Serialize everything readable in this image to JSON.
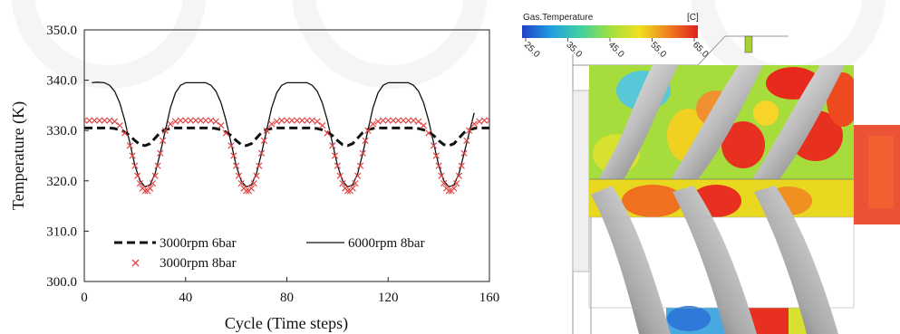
{
  "chart_data": {
    "type": "line",
    "xlabel": "Cycle (Time steps)",
    "ylabel": "Temperature (K)",
    "xlim": [
      0,
      160
    ],
    "ylim": [
      300,
      350
    ],
    "xticks": [
      "0",
      "40",
      "80",
      "120",
      "160"
    ],
    "yticks": [
      "300.0",
      "310.0",
      "320.0",
      "330.0",
      "340.0",
      "350.0"
    ],
    "grid": false,
    "legend_position": "bottom-center",
    "period": 40,
    "series": [
      {
        "name": "3000rpm 6bar",
        "style": "dashed",
        "color": "#111111",
        "x": [
          0,
          5,
          10,
          12,
          15,
          18,
          20,
          22,
          24,
          26,
          28,
          30,
          32,
          35,
          40,
          45,
          50,
          52,
          55,
          58,
          60,
          62,
          64,
          66,
          68,
          70,
          72,
          75,
          80,
          85,
          90,
          92,
          95,
          98,
          100,
          102,
          104,
          106,
          108,
          110,
          112,
          115,
          120,
          125,
          130,
          132,
          135,
          138,
          140,
          142,
          144,
          146,
          148,
          150,
          152,
          155,
          160
        ],
        "y": [
          330.5,
          330.5,
          330.5,
          330.4,
          330.0,
          329.0,
          328.0,
          327.2,
          327.0,
          327.4,
          328.5,
          329.6,
          330.2,
          330.5,
          330.5,
          330.5,
          330.5,
          330.4,
          330.0,
          329.0,
          328.0,
          327.2,
          327.0,
          327.4,
          328.5,
          329.6,
          330.2,
          330.5,
          330.5,
          330.5,
          330.5,
          330.4,
          330.0,
          329.0,
          328.0,
          327.2,
          327.0,
          327.4,
          328.5,
          329.6,
          330.2,
          330.5,
          330.5,
          330.5,
          330.5,
          330.4,
          330.0,
          329.0,
          328.0,
          327.2,
          327.0,
          327.4,
          328.5,
          329.6,
          330.2,
          330.5,
          330.5
        ]
      },
      {
        "name": "6000rpm 8bar",
        "style": "solid",
        "color": "#111111",
        "x": [
          3,
          5,
          8,
          10,
          12,
          14,
          16,
          18,
          20,
          22,
          24,
          26,
          28,
          30,
          32,
          34,
          36,
          38,
          40,
          45,
          48,
          50,
          52,
          54,
          56,
          58,
          60,
          62,
          64,
          66,
          68,
          70,
          72,
          74,
          76,
          78,
          80,
          85,
          88,
          90,
          92,
          94,
          96,
          98,
          100,
          102,
          104,
          106,
          108,
          110,
          112,
          114,
          116,
          118,
          120,
          125,
          128,
          130,
          132,
          134,
          136,
          138,
          140,
          142,
          144,
          146,
          148,
          150,
          152,
          154
        ],
        "y": [
          339.5,
          339.6,
          339.5,
          339.0,
          337.8,
          335.5,
          332.0,
          327.5,
          323.0,
          320.0,
          318.8,
          319.2,
          321.5,
          325.5,
          330.0,
          334.5,
          337.5,
          339.0,
          339.5,
          339.5,
          339.5,
          339.0,
          337.8,
          335.5,
          332.0,
          327.5,
          323.0,
          320.0,
          318.8,
          319.2,
          321.5,
          325.5,
          330.0,
          334.5,
          337.5,
          339.0,
          339.5,
          339.5,
          339.5,
          339.0,
          337.8,
          335.5,
          332.0,
          327.5,
          323.0,
          320.0,
          318.8,
          319.2,
          321.5,
          325.5,
          330.0,
          334.5,
          337.5,
          339.0,
          339.5,
          339.5,
          339.5,
          339.0,
          337.8,
          335.5,
          332.0,
          327.5,
          323.0,
          320.0,
          318.8,
          319.2,
          321.5,
          325.5,
          329.5,
          333.5
        ]
      },
      {
        "name": "3000rpm 8bar",
        "style": "markers-x",
        "color": "#e04646",
        "x": [
          0,
          2,
          4,
          6,
          8,
          10,
          12,
          14,
          16,
          18,
          19,
          20,
          21,
          22,
          23,
          24,
          25,
          26,
          27,
          28,
          29,
          30,
          31,
          32,
          34,
          36,
          38,
          40,
          42,
          44,
          46,
          48,
          50,
          52,
          54,
          56,
          58,
          59,
          60,
          61,
          62,
          63,
          64,
          65,
          66,
          67,
          68,
          69,
          70,
          71,
          72,
          74,
          76,
          78,
          80,
          82,
          84,
          86,
          88,
          90,
          92,
          94,
          96,
          98,
          99,
          100,
          101,
          102,
          103,
          104,
          105,
          106,
          107,
          108,
          109,
          110,
          111,
          112,
          114,
          116,
          118,
          120,
          122,
          124,
          126,
          128,
          130,
          132,
          134,
          136,
          138,
          139,
          140,
          141,
          142,
          143,
          144,
          145,
          146,
          147,
          148,
          149,
          150,
          151,
          152,
          154,
          156,
          158,
          160
        ],
        "y": [
          332.0,
          332.0,
          332.0,
          332.0,
          332.0,
          332.0,
          331.8,
          331.0,
          329.5,
          327.0,
          325.0,
          323.0,
          321.0,
          319.5,
          318.5,
          318.0,
          318.0,
          318.5,
          319.5,
          321.0,
          323.0,
          325.5,
          328.0,
          330.0,
          331.3,
          331.8,
          332.0,
          332.0,
          332.0,
          332.0,
          332.0,
          332.0,
          332.0,
          331.8,
          331.0,
          329.5,
          327.0,
          325.0,
          323.0,
          321.0,
          319.5,
          318.5,
          318.0,
          318.0,
          318.5,
          319.5,
          321.0,
          323.0,
          325.5,
          328.0,
          330.0,
          331.3,
          331.8,
          332.0,
          332.0,
          332.0,
          332.0,
          332.0,
          332.0,
          332.0,
          331.8,
          331.0,
          329.5,
          327.0,
          325.0,
          323.0,
          321.0,
          319.5,
          318.5,
          318.0,
          318.0,
          318.5,
          319.5,
          321.0,
          323.0,
          325.5,
          328.0,
          330.0,
          331.3,
          331.8,
          332.0,
          332.0,
          332.0,
          332.0,
          332.0,
          332.0,
          332.0,
          331.8,
          331.0,
          329.5,
          327.0,
          325.0,
          323.0,
          321.0,
          319.5,
          318.5,
          318.0,
          318.0,
          318.5,
          319.5,
          321.0,
          323.0,
          325.5,
          328.0,
          330.0,
          331.3,
          331.8,
          332.0,
          332.0
        ]
      }
    ]
  },
  "contour": {
    "variable_label": "Gas.Temperature",
    "unit_label": "[C]",
    "colorbar_ticks": [
      "25.0",
      "35.0",
      "45.0",
      "55.0",
      "65.0"
    ],
    "colorbar_colors": [
      "#2040c8",
      "#20a0e0",
      "#40d0a0",
      "#a0e040",
      "#f0e020",
      "#f08020",
      "#e02020"
    ],
    "geometry_color": "#d8d8d8"
  }
}
